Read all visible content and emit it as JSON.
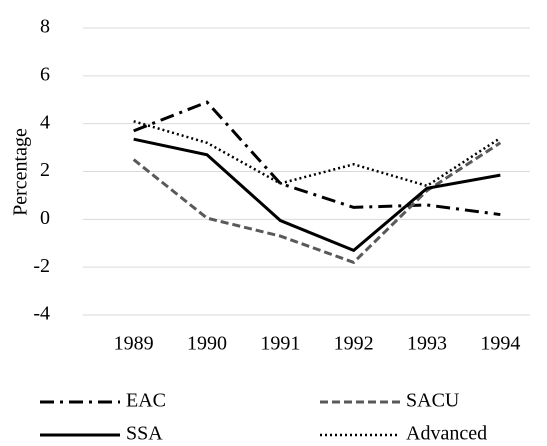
{
  "chart_data": {
    "type": "line",
    "y_label": "Percentage",
    "categories": [
      "1989",
      "1990",
      "1991",
      "1992",
      "1993",
      "1994"
    ],
    "series": [
      {
        "name": "EAC",
        "color": "#000000",
        "style": "dash-dot",
        "values": [
          3.7,
          4.9,
          1.5,
          0.5,
          0.6,
          0.2
        ]
      },
      {
        "name": "SACU",
        "color": "#595959",
        "style": "dashed",
        "values": [
          2.5,
          0.05,
          -0.7,
          -1.8,
          1.2,
          3.2
        ]
      },
      {
        "name": "SSA",
        "color": "#000000",
        "style": "solid",
        "values": [
          3.35,
          2.7,
          -0.05,
          -1.3,
          1.3,
          1.85
        ]
      },
      {
        "name": "Advanced",
        "color": "#000000",
        "style": "dotted",
        "values": [
          4.1,
          3.2,
          1.5,
          2.3,
          1.4,
          3.4
        ]
      }
    ],
    "ylim": [
      -4,
      8
    ],
    "yticks": [
      -4,
      -2,
      0,
      2,
      4,
      6,
      8
    ],
    "grid": true
  }
}
